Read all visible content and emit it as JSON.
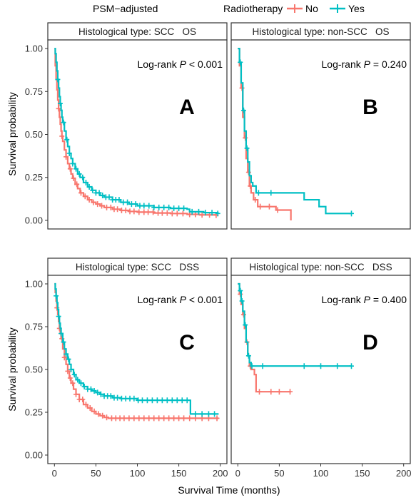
{
  "legend": {
    "prefix": "PSM−adjusted",
    "title": "Radiotherapy",
    "entries": [
      {
        "label": "No",
        "color": "#F8766D"
      },
      {
        "label": "Yes",
        "color": "#00BFC4"
      }
    ]
  },
  "axes": {
    "xlabel": "Survival Time (months)",
    "ylabel": "Survival probability"
  },
  "chart_data": [
    {
      "type": "line",
      "panel": "A",
      "strip": "Histological type: SCC   OS",
      "logrank": {
        "prefix": "Log-rank ",
        "p": "P",
        "suffix": " < 0.001"
      },
      "xlim": [
        -8,
        208
      ],
      "ylim": [
        -0.05,
        1.05
      ],
      "x_ticks": [
        "0",
        "50",
        "100",
        "150",
        "200"
      ],
      "y_ticks": [
        "0.00",
        "0.25",
        "0.50",
        "0.75",
        "1.00"
      ],
      "show_y_ticks": true,
      "show_x_ticks": false,
      "series": [
        {
          "name": "No",
          "color": "#F8766D",
          "points": [
            [
              0,
              1
            ],
            [
              1,
              0.9
            ],
            [
              2,
              0.82
            ],
            [
              3,
              0.76
            ],
            [
              4,
              0.7
            ],
            [
              5,
              0.65
            ],
            [
              6,
              0.6
            ],
            [
              7,
              0.56
            ],
            [
              8,
              0.52
            ],
            [
              9,
              0.49
            ],
            [
              10,
              0.46
            ],
            [
              12,
              0.41
            ],
            [
              14,
              0.37
            ],
            [
              16,
              0.33
            ],
            [
              18,
              0.3
            ],
            [
              20,
              0.27
            ],
            [
              22,
              0.245
            ],
            [
              25,
              0.21
            ],
            [
              28,
              0.185
            ],
            [
              31,
              0.16
            ],
            [
              35,
              0.14
            ],
            [
              40,
              0.12
            ],
            [
              45,
              0.105
            ],
            [
              50,
              0.095
            ],
            [
              55,
              0.085
            ],
            [
              60,
              0.075
            ],
            [
              70,
              0.065
            ],
            [
              80,
              0.058
            ],
            [
              90,
              0.052
            ],
            [
              100,
              0.048
            ],
            [
              120,
              0.043
            ],
            [
              140,
              0.04
            ],
            [
              160,
              0.035
            ],
            [
              175,
              0.032
            ],
            [
              195,
              0.03
            ]
          ],
          "censors": [
            5,
            9,
            14,
            19,
            23,
            27,
            32,
            37,
            42,
            47,
            52,
            57,
            63,
            68,
            72,
            76,
            81,
            86,
            91,
            96,
            102,
            108,
            113,
            119,
            125,
            130,
            136,
            142,
            148,
            155,
            163,
            170,
            178,
            187,
            195
          ]
        },
        {
          "name": "Yes",
          "color": "#00BFC4",
          "points": [
            [
              0,
              1
            ],
            [
              1,
              0.97
            ],
            [
              2,
              0.92
            ],
            [
              3,
              0.87
            ],
            [
              4,
              0.82
            ],
            [
              5,
              0.77
            ],
            [
              6,
              0.72
            ],
            [
              7,
              0.68
            ],
            [
              8,
              0.64
            ],
            [
              9,
              0.6
            ],
            [
              10,
              0.57
            ],
            [
              12,
              0.52
            ],
            [
              14,
              0.47
            ],
            [
              16,
              0.43
            ],
            [
              18,
              0.39
            ],
            [
              20,
              0.36
            ],
            [
              22,
              0.33
            ],
            [
              25,
              0.3
            ],
            [
              28,
              0.27
            ],
            [
              31,
              0.25
            ],
            [
              35,
              0.22
            ],
            [
              40,
              0.195
            ],
            [
              45,
              0.175
            ],
            [
              50,
              0.16
            ],
            [
              55,
              0.145
            ],
            [
              60,
              0.135
            ],
            [
              70,
              0.12
            ],
            [
              80,
              0.105
            ],
            [
              90,
              0.095
            ],
            [
              100,
              0.085
            ],
            [
              120,
              0.075
            ],
            [
              140,
              0.07
            ],
            [
              160,
              0.065
            ],
            [
              163,
              0.05
            ],
            [
              180,
              0.045
            ],
            [
              197,
              0.04
            ]
          ],
          "censors": [
            4,
            7,
            11,
            15,
            18,
            22,
            26,
            30,
            34,
            38,
            42,
            46,
            50,
            54,
            58,
            62,
            66,
            70,
            74,
            78,
            83,
            88,
            93,
            98,
            103,
            108,
            114,
            120,
            126,
            132,
            138,
            144,
            150,
            156,
            166,
            174,
            182,
            190,
            197
          ]
        }
      ]
    },
    {
      "type": "line",
      "panel": "B",
      "strip": "Histological type: non-SCC   OS",
      "logrank": {
        "prefix": "Log-rank ",
        "p": "P",
        "suffix": " = 0.240"
      },
      "xlim": [
        -8,
        208
      ],
      "ylim": [
        -0.05,
        1.05
      ],
      "x_ticks": [
        "0",
        "50",
        "100",
        "150",
        "200"
      ],
      "y_ticks": [
        "0.00",
        "0.25",
        "0.50",
        "0.75",
        "1.00"
      ],
      "show_y_ticks": false,
      "show_x_ticks": false,
      "series": [
        {
          "name": "No",
          "color": "#F8766D",
          "points": [
            [
              0,
              1
            ],
            [
              2,
              0.9
            ],
            [
              4,
              0.77
            ],
            [
              6,
              0.6
            ],
            [
              8,
              0.48
            ],
            [
              10,
              0.36
            ],
            [
              12,
              0.28
            ],
            [
              14,
              0.2
            ],
            [
              16,
              0.16
            ],
            [
              19,
              0.12
            ],
            [
              24,
              0.08
            ],
            [
              35,
              0.08
            ],
            [
              46,
              0.06
            ],
            [
              62,
              0.06
            ],
            [
              64,
              0.0
            ]
          ],
          "censors": [
            5,
            9,
            13,
            15,
            21,
            27,
            38,
            48
          ]
        },
        {
          "name": "Yes",
          "color": "#00BFC4",
          "points": [
            [
              0,
              1
            ],
            [
              2,
              0.92
            ],
            [
              4,
              0.8
            ],
            [
              6,
              0.64
            ],
            [
              8,
              0.52
            ],
            [
              10,
              0.42
            ],
            [
              12,
              0.34
            ],
            [
              14,
              0.26
            ],
            [
              16,
              0.22
            ],
            [
              18,
              0.2
            ],
            [
              22,
              0.16
            ],
            [
              78,
              0.16
            ],
            [
              80,
              0.12
            ],
            [
              95,
              0.12
            ],
            [
              98,
              0.08
            ],
            [
              104,
              0.08
            ],
            [
              106,
              0.04
            ],
            [
              138,
              0.04
            ]
          ],
          "censors": [
            3,
            7,
            11,
            25,
            40,
            137
          ]
        }
      ]
    },
    {
      "type": "line",
      "panel": "C",
      "strip": "Histological type: SCC   DSS",
      "logrank": {
        "prefix": "Log-rank ",
        "p": "P",
        "suffix": " < 0.001"
      },
      "xlim": [
        -8,
        208
      ],
      "ylim": [
        -0.05,
        1.05
      ],
      "x_ticks": [
        "0",
        "50",
        "100",
        "150",
        "200"
      ],
      "y_ticks": [
        "0.00",
        "0.25",
        "0.50",
        "0.75",
        "1.00"
      ],
      "show_y_ticks": true,
      "show_x_ticks": true,
      "series": [
        {
          "name": "No",
          "color": "#F8766D",
          "points": [
            [
              0,
              1
            ],
            [
              1,
              0.95
            ],
            [
              2,
              0.9
            ],
            [
              3,
              0.86
            ],
            [
              4,
              0.82
            ],
            [
              5,
              0.78
            ],
            [
              6,
              0.74
            ],
            [
              7,
              0.71
            ],
            [
              8,
              0.68
            ],
            [
              10,
              0.62
            ],
            [
              12,
              0.57
            ],
            [
              14,
              0.53
            ],
            [
              16,
              0.49
            ],
            [
              18,
              0.45
            ],
            [
              20,
              0.42
            ],
            [
              23,
              0.385
            ],
            [
              26,
              0.355
            ],
            [
              30,
              0.325
            ],
            [
              35,
              0.295
            ],
            [
              40,
              0.275
            ],
            [
              45,
              0.255
            ],
            [
              50,
              0.24
            ],
            [
              55,
              0.23
            ],
            [
              60,
              0.22
            ],
            [
              65,
              0.215
            ],
            [
              80,
              0.215
            ],
            [
              100,
              0.215
            ],
            [
              150,
              0.215
            ],
            [
              198,
              0.215
            ]
          ],
          "censors": [
            3,
            6,
            9,
            12,
            16,
            19,
            22,
            26,
            30,
            34,
            38,
            43,
            48,
            53,
            58,
            63,
            69,
            74,
            79,
            84,
            90,
            96,
            102,
            108,
            114,
            120,
            126,
            132,
            138,
            144,
            150,
            156,
            163,
            170,
            178,
            186,
            196
          ]
        },
        {
          "name": "Yes",
          "color": "#00BFC4",
          "points": [
            [
              0,
              1
            ],
            [
              1,
              0.97
            ],
            [
              2,
              0.93
            ],
            [
              3,
              0.89
            ],
            [
              4,
              0.85
            ],
            [
              5,
              0.81
            ],
            [
              6,
              0.77
            ],
            [
              7,
              0.74
            ],
            [
              8,
              0.71
            ],
            [
              10,
              0.66
            ],
            [
              12,
              0.62
            ],
            [
              14,
              0.59
            ],
            [
              16,
              0.56
            ],
            [
              18,
              0.53
            ],
            [
              20,
              0.5
            ],
            [
              23,
              0.47
            ],
            [
              26,
              0.44
            ],
            [
              30,
              0.42
            ],
            [
              35,
              0.4
            ],
            [
              40,
              0.385
            ],
            [
              45,
              0.375
            ],
            [
              50,
              0.365
            ],
            [
              55,
              0.355
            ],
            [
              60,
              0.345
            ],
            [
              70,
              0.335
            ],
            [
              80,
              0.33
            ],
            [
              100,
              0.32
            ],
            [
              130,
              0.32
            ],
            [
              163,
              0.32
            ],
            [
              164,
              0.24
            ],
            [
              180,
              0.24
            ],
            [
              198,
              0.24
            ]
          ],
          "censors": [
            2,
            5,
            8,
            11,
            14,
            17,
            20,
            24,
            28,
            32,
            36,
            40,
            44,
            48,
            52,
            56,
            60,
            64,
            68,
            72,
            76,
            81,
            86,
            91,
            96,
            101,
            106,
            112,
            118,
            124,
            130,
            136,
            142,
            148,
            154,
            160,
            170,
            178,
            186,
            193
          ]
        }
      ]
    },
    {
      "type": "line",
      "panel": "D",
      "strip": "Histological type: non-SCC   DSS",
      "logrank": {
        "prefix": "Log-rank ",
        "p": "P",
        "suffix": " = 0.400"
      },
      "xlim": [
        -8,
        208
      ],
      "ylim": [
        -0.05,
        1.05
      ],
      "x_ticks": [
        "0",
        "50",
        "100",
        "150",
        "200"
      ],
      "y_ticks": [
        "0.00",
        "0.25",
        "0.50",
        "0.75",
        "1.00"
      ],
      "show_y_ticks": false,
      "show_x_ticks": true,
      "series": [
        {
          "name": "No",
          "color": "#F8766D",
          "points": [
            [
              0,
              1
            ],
            [
              2,
              0.94
            ],
            [
              4,
              0.88
            ],
            [
              6,
              0.82
            ],
            [
              8,
              0.74
            ],
            [
              10,
              0.66
            ],
            [
              12,
              0.58
            ],
            [
              14,
              0.52
            ],
            [
              16,
              0.5
            ],
            [
              20,
              0.47
            ],
            [
              22,
              0.37
            ],
            [
              40,
              0.37
            ],
            [
              64,
              0.37
            ]
          ],
          "censors": [
            3,
            7,
            11,
            15,
            26,
            40,
            50,
            63
          ]
        },
        {
          "name": "Yes",
          "color": "#00BFC4",
          "points": [
            [
              0,
              1
            ],
            [
              2,
              0.96
            ],
            [
              4,
              0.9
            ],
            [
              6,
              0.84
            ],
            [
              8,
              0.76
            ],
            [
              10,
              0.66
            ],
            [
              12,
              0.58
            ],
            [
              14,
              0.54
            ],
            [
              16,
              0.52
            ],
            [
              80,
              0.52
            ],
            [
              138,
              0.52
            ]
          ],
          "censors": [
            3,
            5,
            9,
            13,
            17,
            30,
            80,
            100,
            120,
            137
          ]
        }
      ]
    }
  ]
}
